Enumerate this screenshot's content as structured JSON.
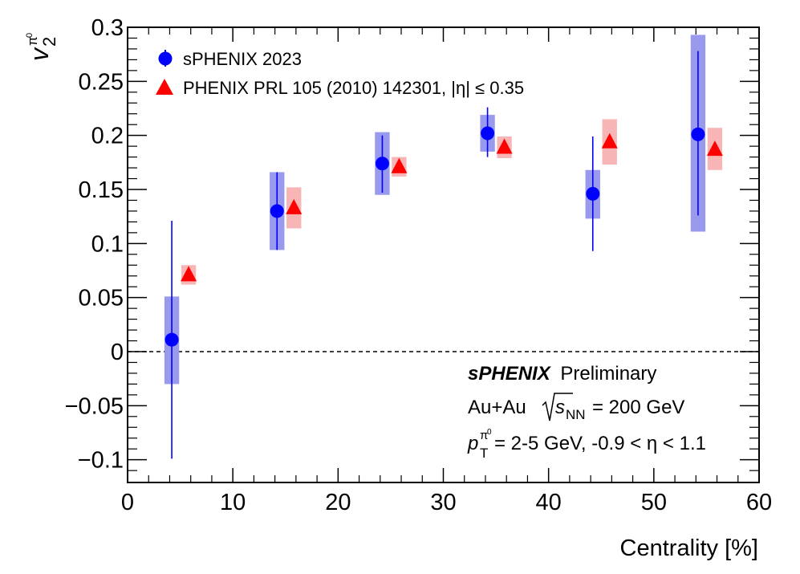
{
  "chart_data": {
    "type": "scatter",
    "title": "",
    "xlabel": "Centrality [%]",
    "ylabel": "v2 pi0",
    "xlim": [
      0,
      60
    ],
    "ylim": [
      -0.12,
      0.3
    ],
    "x_ticks": [
      0,
      10,
      20,
      30,
      40,
      50,
      60
    ],
    "x_tick_labels": [
      "0",
      "10",
      "20",
      "30",
      "40",
      "50",
      "60"
    ],
    "y_ticks": [
      -0.1,
      -0.05,
      0,
      0.05,
      0.1,
      0.15,
      0.2,
      0.25,
      0.3
    ],
    "y_tick_labels": [
      "−0.1",
      "−0.05",
      "0",
      "0.05",
      "0.1",
      "0.15",
      "0.2",
      "0.25",
      "0.3"
    ],
    "reference_line": 0,
    "series": [
      {
        "name": "sPHENIX 2023",
        "marker": "circle",
        "color": "#0000ff",
        "syst_color": "#9999ee",
        "points": [
          {
            "x": 4.2,
            "y": 0.011,
            "stat": [
              -0.099,
              0.121
            ],
            "syst": [
              -0.03,
              0.051
            ]
          },
          {
            "x": 14.2,
            "y": 0.13,
            "stat": [
              0.094,
              0.166
            ],
            "syst": [
              0.094,
              0.166
            ]
          },
          {
            "x": 24.2,
            "y": 0.174,
            "stat": [
              0.147,
              0.2
            ],
            "syst": [
              0.145,
              0.203
            ]
          },
          {
            "x": 34.2,
            "y": 0.202,
            "stat": [
              0.18,
              0.226
            ],
            "syst": [
              0.185,
              0.219
            ]
          },
          {
            "x": 44.2,
            "y": 0.146,
            "stat": [
              0.093,
              0.199
            ],
            "syst": [
              0.123,
              0.168
            ]
          },
          {
            "x": 54.2,
            "y": 0.201,
            "stat": [
              0.126,
              0.278
            ],
            "syst": [
              0.111,
              0.293
            ]
          }
        ]
      },
      {
        "name": "PHENIX PRL 105 (2010) 142301, |η| ≤ 0.35",
        "marker": "triangle",
        "color": "#ff0000",
        "syst_color": "#f7b5b5",
        "points": [
          {
            "x": 5.8,
            "y": 0.071,
            "syst": [
              0.062,
              0.08
            ]
          },
          {
            "x": 15.8,
            "y": 0.133,
            "syst": [
              0.114,
              0.152
            ]
          },
          {
            "x": 25.8,
            "y": 0.171,
            "syst": [
              0.162,
              0.18
            ]
          },
          {
            "x": 35.8,
            "y": 0.189,
            "syst": [
              0.179,
              0.199
            ]
          },
          {
            "x": 45.8,
            "y": 0.194,
            "syst": [
              0.173,
              0.215
            ]
          },
          {
            "x": 55.8,
            "y": 0.187,
            "syst": [
              0.168,
              0.207
            ]
          }
        ]
      }
    ],
    "legend_position": "top-left",
    "annotations": {
      "experiment": "sPHENIX",
      "status": "Preliminary",
      "system": "Au+Au",
      "energy_var": "s",
      "energy_sub": "NN",
      "energy_value": "= 200 GeV",
      "pt_var": "p",
      "pt_sub": "T",
      "pt_sup": "π",
      "pt_sup0": "0",
      "pt_range": "= 2-5 GeV, -0.9 < η < 1.1"
    },
    "ylabel_parts": {
      "var": "v",
      "sub": "2",
      "sup": "π",
      "sup0": "0"
    }
  }
}
